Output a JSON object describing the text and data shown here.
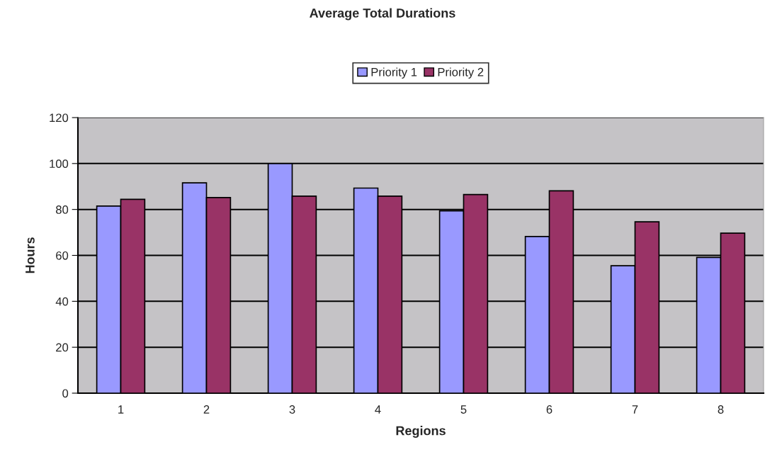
{
  "chart_data": {
    "type": "bar",
    "title": "Average Total Durations",
    "xlabel": "Regions",
    "ylabel": "Hours",
    "categories": [
      "1",
      "2",
      "3",
      "4",
      "5",
      "6",
      "7",
      "8"
    ],
    "series": [
      {
        "name": "Priority 1",
        "color": "#9999ff",
        "values": [
          81.5,
          91.6,
          100,
          89.3,
          79.4,
          68.2,
          55.5,
          59.1
        ]
      },
      {
        "name": "Priority 2",
        "color": "#993366",
        "values": [
          84.4,
          85.2,
          85.8,
          85.8,
          86.5,
          88.1,
          74.6,
          69.7
        ]
      }
    ],
    "ylim": [
      0,
      120
    ],
    "yticks": [
      0,
      20,
      40,
      60,
      80,
      100,
      120
    ],
    "grid": "y",
    "legend": "top"
  }
}
